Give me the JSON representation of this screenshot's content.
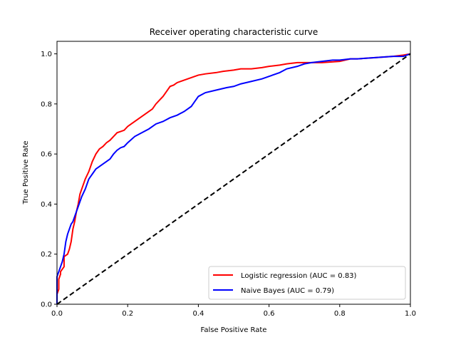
{
  "chart_data": {
    "type": "line",
    "title": "Receiver operating characteristic curve",
    "xlabel": "False Positive Rate",
    "ylabel": "True Positive Rate",
    "xlim": [
      0.0,
      1.0
    ],
    "ylim": [
      0.0,
      1.05
    ],
    "x_ticks": [
      0.0,
      0.2,
      0.4,
      0.6,
      0.8,
      1.0
    ],
    "x_tick_labels": [
      "0.0",
      "0.2",
      "0.4",
      "0.6",
      "0.8",
      "1.0"
    ],
    "y_ticks": [
      0.0,
      0.2,
      0.4,
      0.6,
      0.8,
      1.0
    ],
    "y_tick_labels": [
      "0.0",
      "0.2",
      "0.4",
      "0.6",
      "0.8",
      "1.0"
    ],
    "grid": false,
    "legend_position": "lower-right",
    "series": [
      {
        "name": "Logistic regression (AUC = 0.83)",
        "color": "#ff0000",
        "x": [
          0.0,
          0.0,
          0.005,
          0.005,
          0.01,
          0.01,
          0.02,
          0.02,
          0.03,
          0.035,
          0.04,
          0.045,
          0.05,
          0.055,
          0.06,
          0.065,
          0.07,
          0.075,
          0.08,
          0.09,
          0.095,
          0.1,
          0.11,
          0.12,
          0.13,
          0.14,
          0.15,
          0.16,
          0.17,
          0.18,
          0.19,
          0.2,
          0.21,
          0.22,
          0.23,
          0.24,
          0.25,
          0.26,
          0.27,
          0.28,
          0.29,
          0.3,
          0.31,
          0.32,
          0.33,
          0.34,
          0.36,
          0.38,
          0.4,
          0.42,
          0.45,
          0.47,
          0.5,
          0.52,
          0.55,
          0.58,
          0.6,
          0.63,
          0.65,
          0.68,
          0.7,
          0.75,
          0.8,
          0.83,
          0.85,
          0.9,
          0.95,
          0.98,
          1.0
        ],
        "y": [
          0.0,
          0.04,
          0.06,
          0.1,
          0.12,
          0.13,
          0.15,
          0.19,
          0.2,
          0.22,
          0.25,
          0.3,
          0.33,
          0.37,
          0.4,
          0.44,
          0.46,
          0.48,
          0.5,
          0.53,
          0.55,
          0.57,
          0.6,
          0.62,
          0.63,
          0.645,
          0.655,
          0.67,
          0.685,
          0.69,
          0.695,
          0.71,
          0.72,
          0.73,
          0.74,
          0.75,
          0.76,
          0.77,
          0.78,
          0.8,
          0.815,
          0.83,
          0.85,
          0.87,
          0.875,
          0.885,
          0.895,
          0.905,
          0.915,
          0.92,
          0.925,
          0.93,
          0.935,
          0.94,
          0.94,
          0.945,
          0.95,
          0.955,
          0.96,
          0.965,
          0.965,
          0.965,
          0.97,
          0.98,
          0.98,
          0.985,
          0.99,
          0.995,
          1.0
        ]
      },
      {
        "name": "Naive Bayes (AUC = 0.79)",
        "color": "#0000ff",
        "x": [
          0.0,
          0.0,
          0.005,
          0.01,
          0.015,
          0.02,
          0.025,
          0.03,
          0.035,
          0.04,
          0.045,
          0.05,
          0.055,
          0.06,
          0.065,
          0.07,
          0.08,
          0.09,
          0.1,
          0.11,
          0.12,
          0.13,
          0.14,
          0.15,
          0.16,
          0.17,
          0.18,
          0.19,
          0.2,
          0.22,
          0.24,
          0.26,
          0.28,
          0.3,
          0.32,
          0.34,
          0.36,
          0.38,
          0.39,
          0.4,
          0.42,
          0.45,
          0.48,
          0.5,
          0.52,
          0.55,
          0.58,
          0.6,
          0.63,
          0.65,
          0.68,
          0.7,
          0.72,
          0.75,
          0.78,
          0.8,
          0.83,
          0.85,
          0.9,
          0.95,
          0.98,
          1.0
        ],
        "y": [
          0.0,
          0.11,
          0.13,
          0.15,
          0.17,
          0.2,
          0.25,
          0.28,
          0.3,
          0.32,
          0.33,
          0.35,
          0.37,
          0.39,
          0.41,
          0.43,
          0.46,
          0.5,
          0.52,
          0.54,
          0.55,
          0.56,
          0.57,
          0.58,
          0.6,
          0.615,
          0.625,
          0.63,
          0.645,
          0.67,
          0.685,
          0.7,
          0.72,
          0.73,
          0.745,
          0.755,
          0.77,
          0.79,
          0.81,
          0.83,
          0.845,
          0.855,
          0.865,
          0.87,
          0.88,
          0.89,
          0.9,
          0.91,
          0.925,
          0.94,
          0.95,
          0.96,
          0.965,
          0.97,
          0.975,
          0.975,
          0.98,
          0.98,
          0.985,
          0.99,
          0.99,
          1.0
        ]
      },
      {
        "name": "",
        "color": "#000000",
        "dashed": true,
        "x": [
          0.0,
          1.0
        ],
        "y": [
          0.0,
          1.0
        ]
      }
    ]
  }
}
